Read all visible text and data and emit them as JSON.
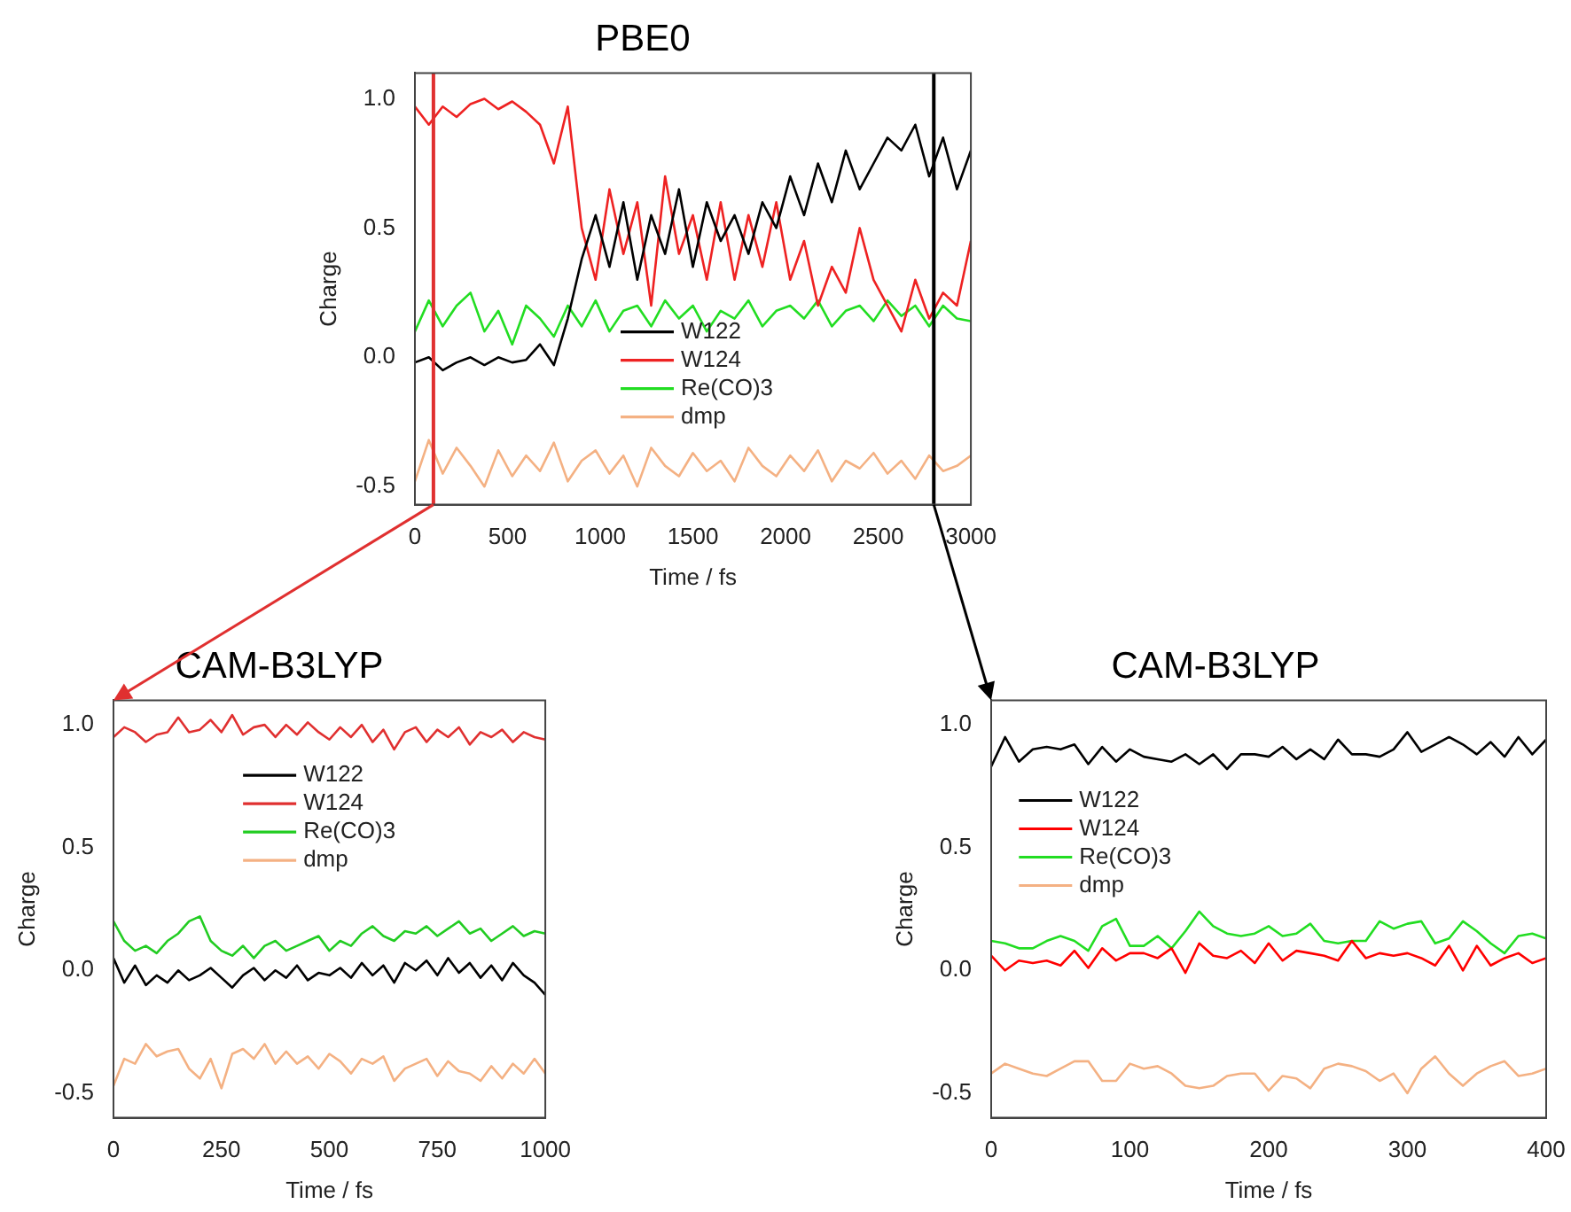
{
  "chart_data": [
    {
      "type": "line",
      "title": "PBE0",
      "xlabel": "Time / fs",
      "ylabel": "Charge",
      "legend": "bottom",
      "grid": false,
      "x": [
        0,
        75,
        150,
        225,
        300,
        375,
        450,
        525,
        600,
        675,
        750,
        825,
        900,
        975,
        1050,
        1125,
        1200,
        1275,
        1350,
        1425,
        1500,
        1575,
        1650,
        1725,
        1800,
        1875,
        1950,
        2025,
        2100,
        2175,
        2250,
        2325,
        2400,
        2475,
        2550,
        2625,
        2700,
        2775,
        2850,
        2925,
        3000
      ],
      "xlim": [
        0,
        3000
      ],
      "xticks": [
        0,
        500,
        1000,
        1500,
        2000,
        2500,
        3000
      ],
      "ylim": [
        -0.57,
        1.1
      ],
      "yticks": [
        {
          "value": -0.5,
          "label": "-0.5"
        },
        {
          "value": 0,
          "label": "0.0"
        },
        {
          "value": 0.5,
          "label": "0.5"
        },
        {
          "value": 1,
          "label": "1.0"
        }
      ],
      "ref_lines": [
        {
          "axis": "x",
          "value": 100,
          "color": "#e03030"
        },
        {
          "axis": "x",
          "value": 2800,
          "color": "#000000"
        }
      ],
      "series": [
        {
          "name": "W122",
          "color": "#000000",
          "values": [
            -0.02,
            0.0,
            -0.05,
            -0.02,
            0.0,
            -0.03,
            0.0,
            -0.02,
            -0.01,
            0.05,
            -0.03,
            0.15,
            0.38,
            0.55,
            0.35,
            0.6,
            0.3,
            0.55,
            0.4,
            0.65,
            0.35,
            0.6,
            0.45,
            0.55,
            0.4,
            0.6,
            0.5,
            0.7,
            0.55,
            0.75,
            0.6,
            0.8,
            0.65,
            0.75,
            0.85,
            0.8,
            0.9,
            0.7,
            0.85,
            0.65,
            0.8
          ]
        },
        {
          "name": "W124",
          "color": "#ee2222",
          "values": [
            0.97,
            0.9,
            0.97,
            0.93,
            0.98,
            1.0,
            0.96,
            0.99,
            0.95,
            0.9,
            0.75,
            0.97,
            0.5,
            0.3,
            0.65,
            0.4,
            0.6,
            0.2,
            0.7,
            0.4,
            0.55,
            0.3,
            0.6,
            0.3,
            0.55,
            0.35,
            0.6,
            0.3,
            0.45,
            0.2,
            0.35,
            0.25,
            0.5,
            0.3,
            0.2,
            0.1,
            0.3,
            0.15,
            0.25,
            0.2,
            0.45
          ]
        },
        {
          "name": "Re(CO)3",
          "color": "#22dd22",
          "values": [
            0.1,
            0.22,
            0.12,
            0.2,
            0.25,
            0.1,
            0.18,
            0.05,
            0.2,
            0.15,
            0.08,
            0.2,
            0.12,
            0.22,
            0.1,
            0.18,
            0.2,
            0.12,
            0.22,
            0.15,
            0.2,
            0.1,
            0.18,
            0.15,
            0.22,
            0.12,
            0.18,
            0.2,
            0.15,
            0.22,
            0.12,
            0.18,
            0.2,
            0.14,
            0.22,
            0.16,
            0.2,
            0.12,
            0.2,
            0.15,
            0.14
          ]
        },
        {
          "name": "dmp",
          "color": "#f4b183",
          "values": [
            -0.48,
            -0.32,
            -0.45,
            -0.35,
            -0.42,
            -0.5,
            -0.36,
            -0.46,
            -0.38,
            -0.44,
            -0.33,
            -0.48,
            -0.4,
            -0.36,
            -0.45,
            -0.38,
            -0.5,
            -0.35,
            -0.42,
            -0.46,
            -0.37,
            -0.44,
            -0.4,
            -0.48,
            -0.35,
            -0.42,
            -0.46,
            -0.38,
            -0.44,
            -0.36,
            -0.48,
            -0.4,
            -0.43,
            -0.37,
            -0.45,
            -0.4,
            -0.47,
            -0.38,
            -0.44,
            -0.42,
            -0.38
          ]
        }
      ]
    },
    {
      "type": "line",
      "title": "CAM-B3LYP",
      "xlabel": "Time / fs",
      "ylabel": "Charge",
      "legend": "top",
      "grid": false,
      "x": [
        0,
        25,
        50,
        75,
        100,
        125,
        150,
        175,
        200,
        225,
        250,
        275,
        300,
        325,
        350,
        375,
        400,
        425,
        450,
        475,
        500,
        525,
        550,
        575,
        600,
        625,
        650,
        675,
        700,
        725,
        750,
        775,
        800,
        825,
        850,
        875,
        900,
        925,
        950,
        975,
        1000
      ],
      "xlim": [
        0,
        1000
      ],
      "xticks": [
        0,
        250,
        500,
        750,
        1000
      ],
      "ylim": [
        -0.6,
        1.1
      ],
      "yticks": [
        {
          "value": -0.5,
          "label": "-0.5"
        },
        {
          "value": 0,
          "label": "0.0"
        },
        {
          "value": 0.5,
          "label": "0.5"
        },
        {
          "value": 1,
          "label": "1.0"
        }
      ],
      "series": [
        {
          "name": "W122",
          "color": "#000000",
          "values": [
            0.05,
            -0.05,
            0.02,
            -0.06,
            -0.02,
            -0.05,
            0.0,
            -0.04,
            -0.02,
            0.01,
            -0.03,
            -0.07,
            -0.02,
            0.01,
            -0.04,
            0.0,
            -0.03,
            0.02,
            -0.04,
            -0.01,
            -0.02,
            0.01,
            -0.03,
            0.03,
            -0.02,
            0.02,
            -0.05,
            0.03,
            0.0,
            0.04,
            -0.02,
            0.05,
            -0.01,
            0.03,
            -0.03,
            0.02,
            -0.04,
            0.03,
            -0.02,
            -0.05,
            -0.1
          ]
        },
        {
          "name": "W124",
          "color": "#e03030",
          "values": [
            0.95,
            0.99,
            0.97,
            0.93,
            0.96,
            0.97,
            1.03,
            0.97,
            0.98,
            1.02,
            0.97,
            1.04,
            0.96,
            0.99,
            1.0,
            0.95,
            1.0,
            0.96,
            1.01,
            0.97,
            0.94,
            0.99,
            0.95,
            1.0,
            0.93,
            0.98,
            0.9,
            0.97,
            0.99,
            0.93,
            0.98,
            0.95,
            0.99,
            0.92,
            0.97,
            0.95,
            0.98,
            0.93,
            0.97,
            0.95,
            0.94
          ]
        },
        {
          "name": "Re(CO)3",
          "color": "#22cc22",
          "values": [
            0.2,
            0.12,
            0.08,
            0.1,
            0.07,
            0.12,
            0.15,
            0.2,
            0.22,
            0.12,
            0.08,
            0.06,
            0.1,
            0.05,
            0.1,
            0.12,
            0.08,
            0.1,
            0.12,
            0.14,
            0.08,
            0.12,
            0.1,
            0.15,
            0.18,
            0.14,
            0.12,
            0.16,
            0.15,
            0.18,
            0.14,
            0.17,
            0.2,
            0.15,
            0.17,
            0.12,
            0.15,
            0.18,
            0.14,
            0.16,
            0.15
          ]
        },
        {
          "name": "dmp",
          "color": "#f4b183",
          "values": [
            -0.47,
            -0.36,
            -0.38,
            -0.3,
            -0.35,
            -0.33,
            -0.32,
            -0.4,
            -0.44,
            -0.36,
            -0.48,
            -0.34,
            -0.32,
            -0.36,
            -0.3,
            -0.38,
            -0.33,
            -0.38,
            -0.35,
            -0.4,
            -0.34,
            -0.37,
            -0.42,
            -0.36,
            -0.38,
            -0.35,
            -0.45,
            -0.4,
            -0.38,
            -0.36,
            -0.43,
            -0.37,
            -0.41,
            -0.42,
            -0.45,
            -0.39,
            -0.44,
            -0.38,
            -0.42,
            -0.36,
            -0.42
          ]
        }
      ]
    },
    {
      "type": "line",
      "title": "CAM-B3LYP",
      "xlabel": "Time / fs",
      "ylabel": "Charge",
      "legend": "top left",
      "grid": false,
      "x": [
        0,
        10,
        20,
        30,
        40,
        50,
        60,
        70,
        80,
        90,
        100,
        110,
        120,
        130,
        140,
        150,
        160,
        170,
        180,
        190,
        200,
        210,
        220,
        230,
        240,
        250,
        260,
        270,
        280,
        290,
        300,
        310,
        320,
        330,
        340,
        350,
        360,
        370,
        380,
        390,
        400
      ],
      "xlim": [
        0,
        400
      ],
      "xticks": [
        0,
        100,
        200,
        300,
        400
      ],
      "ylim": [
        -0.6,
        1.1
      ],
      "yticks": [
        {
          "value": -0.5,
          "label": "-0.5"
        },
        {
          "value": 0,
          "label": "0.0"
        },
        {
          "value": 0.5,
          "label": "0.5"
        },
        {
          "value": 1,
          "label": "1.0"
        }
      ],
      "series": [
        {
          "name": "W122",
          "color": "#000000",
          "values": [
            0.83,
            0.95,
            0.85,
            0.9,
            0.91,
            0.9,
            0.92,
            0.84,
            0.91,
            0.85,
            0.9,
            0.87,
            0.86,
            0.85,
            0.88,
            0.84,
            0.88,
            0.82,
            0.88,
            0.88,
            0.87,
            0.91,
            0.86,
            0.9,
            0.86,
            0.94,
            0.88,
            0.88,
            0.87,
            0.9,
            0.97,
            0.89,
            0.92,
            0.95,
            0.92,
            0.88,
            0.93,
            0.87,
            0.95,
            0.88,
            0.94
          ]
        },
        {
          "name": "W124",
          "color": "#ff0000",
          "values": [
            0.06,
            0.0,
            0.04,
            0.03,
            0.04,
            0.02,
            0.08,
            0.01,
            0.09,
            0.04,
            0.07,
            0.07,
            0.05,
            0.09,
            -0.01,
            0.11,
            0.06,
            0.05,
            0.08,
            0.03,
            0.11,
            0.04,
            0.08,
            0.07,
            0.06,
            0.04,
            0.12,
            0.05,
            0.07,
            0.06,
            0.07,
            0.05,
            0.02,
            0.1,
            0.0,
            0.1,
            0.02,
            0.05,
            0.07,
            0.03,
            0.05
          ]
        },
        {
          "name": "Re(CO)3",
          "color": "#22dd22",
          "values": [
            0.12,
            0.11,
            0.09,
            0.09,
            0.12,
            0.14,
            0.12,
            0.08,
            0.18,
            0.21,
            0.1,
            0.1,
            0.14,
            0.09,
            0.16,
            0.24,
            0.18,
            0.15,
            0.14,
            0.15,
            0.18,
            0.14,
            0.15,
            0.19,
            0.12,
            0.11,
            0.12,
            0.12,
            0.2,
            0.17,
            0.19,
            0.2,
            0.11,
            0.13,
            0.2,
            0.16,
            0.11,
            0.07,
            0.14,
            0.15,
            0.13
          ]
        },
        {
          "name": "dmp",
          "color": "#f4b183",
          "values": [
            -0.42,
            -0.38,
            -0.4,
            -0.42,
            -0.43,
            -0.4,
            -0.37,
            -0.37,
            -0.45,
            -0.45,
            -0.38,
            -0.4,
            -0.39,
            -0.42,
            -0.47,
            -0.48,
            -0.47,
            -0.43,
            -0.42,
            -0.42,
            -0.49,
            -0.43,
            -0.44,
            -0.48,
            -0.4,
            -0.38,
            -0.39,
            -0.41,
            -0.45,
            -0.42,
            -0.5,
            -0.4,
            -0.35,
            -0.42,
            -0.47,
            -0.42,
            -0.39,
            -0.37,
            -0.43,
            -0.42,
            -0.4
          ]
        }
      ]
    }
  ]
}
